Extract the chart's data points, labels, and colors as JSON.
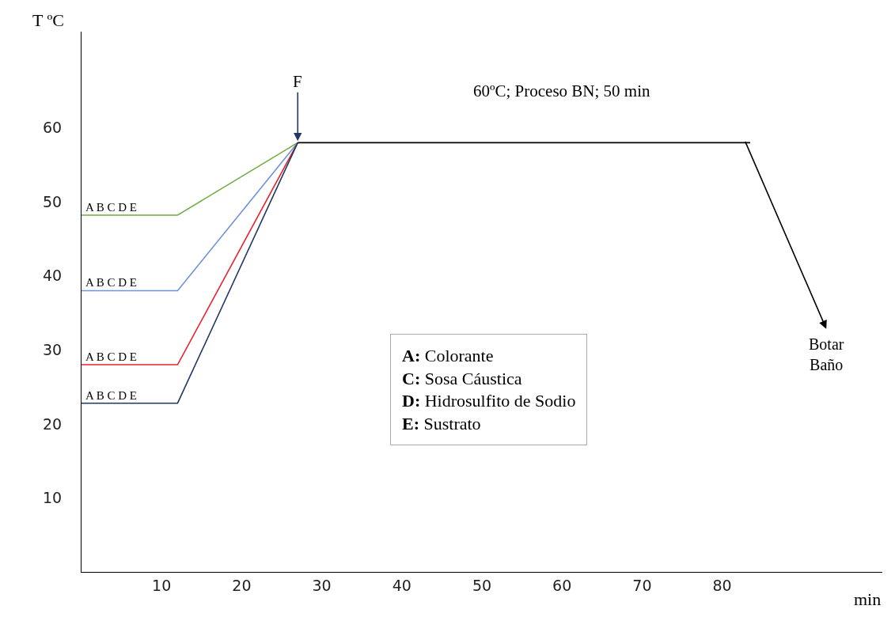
{
  "chart_data": {
    "type": "line",
    "xlabel": "min",
    "ylabel": "T ºC",
    "xlim": [
      0,
      100
    ],
    "ylim": [
      0,
      73
    ],
    "xticks": [
      10,
      20,
      30,
      40,
      50,
      60,
      70,
      80
    ],
    "yticks": [
      10,
      20,
      30,
      40,
      50,
      60
    ],
    "legend": false,
    "marker": "none",
    "line_style": "solid",
    "series": [
      {
        "color": "#70ad47",
        "x": [
          0,
          12,
          27
        ],
        "values": [
          48.2,
          48.2,
          58
        ]
      },
      {
        "color": "#6f93d8",
        "x": [
          0,
          12,
          27
        ],
        "values": [
          38,
          38,
          58
        ]
      },
      {
        "color": "#e8202a",
        "x": [
          0,
          12,
          27
        ],
        "values": [
          28,
          28,
          58
        ]
      },
      {
        "color": "#1f3864",
        "x": [
          0,
          12,
          27
        ],
        "values": [
          22.8,
          22.8,
          58
        ]
      },
      {
        "color": "#000000",
        "x": [
          27,
          83.5
        ],
        "values": [
          58,
          58
        ]
      }
    ],
    "annotations": [
      "A B C D E",
      "A B C D E",
      "A B C D E",
      "A B C D E",
      {
        "text": "F",
        "x": 27,
        "y": 58
      },
      "60ºC; Proceso BN; 50 min",
      "Botar Baño",
      "A: Colorante\nC: Sosa Cáustica\nD: Hidrosulfito de Sodio\nE: Sustrato"
    ]
  }
}
